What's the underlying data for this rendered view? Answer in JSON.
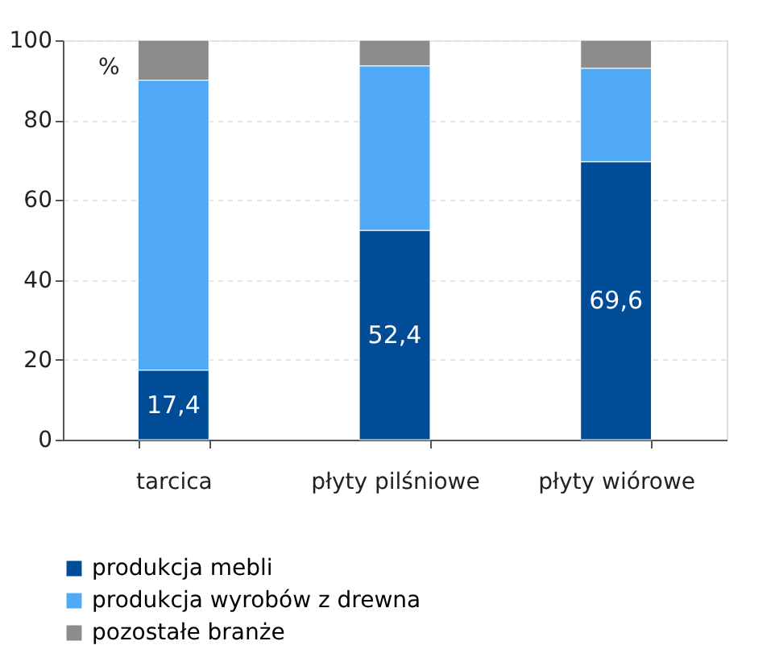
{
  "chart_data": {
    "type": "bar",
    "stacked": true,
    "ylabel": "%",
    "categories": [
      "tarcica",
      "płyty pilśniowe",
      "płyty wiórowe"
    ],
    "series": [
      {
        "name": "produkcja mebli",
        "color": "#004c97",
        "values": [
          17.4,
          52.4,
          69.6
        ],
        "value_labels": [
          "17,4",
          "52,4",
          "69,6"
        ]
      },
      {
        "name": "produkcja wyrobów z drewna",
        "color": "#4fa9f5",
        "values": [
          72.6,
          41.2,
          23.4
        ]
      },
      {
        "name": "pozostałe branże",
        "color": "#8c8c8c",
        "values": [
          10,
          6.4,
          7
        ]
      }
    ],
    "ylim": [
      0,
      100
    ],
    "yticks": [
      0,
      20,
      40,
      60,
      80,
      100
    ],
    "grid": "y",
    "legend": "bottom"
  }
}
